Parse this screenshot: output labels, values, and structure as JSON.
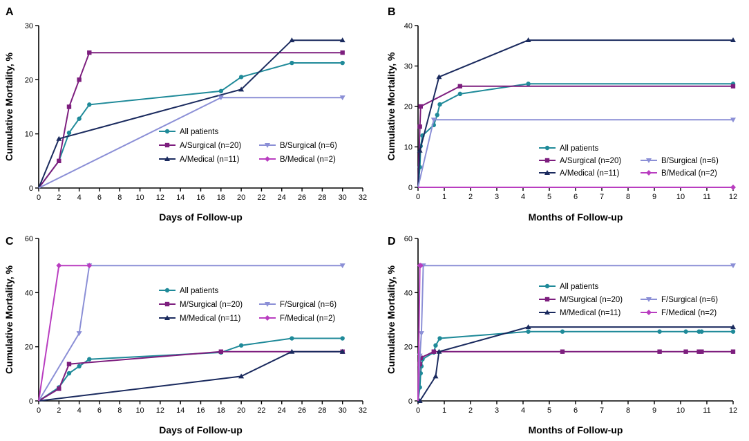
{
  "colors": {
    "teal": "#1f8a99",
    "purple": "#7d1e7e",
    "navy": "#1a2a5e",
    "lavender": "#8b8fd6",
    "magenta": "#b93dc0"
  },
  "chart_data": [
    {
      "panel": "A",
      "type": "line",
      "xlabel": "Days of Follow-up",
      "ylabel": "Cumulative Mortality, %",
      "xlim": [
        0,
        32
      ],
      "ylim": [
        0,
        30
      ],
      "xticks": [
        0,
        2,
        4,
        6,
        8,
        10,
        12,
        14,
        16,
        18,
        20,
        22,
        24,
        26,
        28,
        30,
        32
      ],
      "yticks": [
        0,
        10,
        20,
        30
      ],
      "legend_position": "lower-right",
      "series": [
        {
          "name": "All patients",
          "color": "teal",
          "marker": "circle",
          "x": [
            0,
            2,
            3,
            4,
            5,
            18,
            20,
            25,
            30
          ],
          "y": [
            0,
            5,
            10.2,
            12.8,
            15.4,
            17.9,
            20.5,
            23.1,
            23.1
          ]
        },
        {
          "name": "A/Surgical (n=20)",
          "color": "purple",
          "marker": "square",
          "x": [
            0,
            2,
            3,
            4,
            5,
            30
          ],
          "y": [
            0,
            5,
            15,
            20,
            25,
            25
          ]
        },
        {
          "name": "A/Medical (n=11)",
          "color": "navy",
          "marker": "triangle",
          "x": [
            0,
            2,
            20,
            25,
            30
          ],
          "y": [
            0,
            9.1,
            18.2,
            27.3,
            27.3
          ]
        },
        {
          "name": "B/Surgical (n=6)",
          "color": "lavender",
          "marker": "triangle-down",
          "x": [
            0,
            18,
            30
          ],
          "y": [
            0,
            16.7,
            16.7
          ]
        },
        {
          "name": "B/Medical (n=2)",
          "color": "magenta",
          "marker": "diamond",
          "x": [],
          "y": []
        }
      ]
    },
    {
      "panel": "B",
      "type": "line",
      "xlabel": "Months of Follow-up",
      "ylabel": "Cumulative Mortality, %",
      "xlim": [
        0,
        12
      ],
      "ylim": [
        0,
        40
      ],
      "xticks": [
        0,
        1,
        2,
        3,
        4,
        5,
        6,
        7,
        8,
        9,
        10,
        11,
        12
      ],
      "yticks": [
        0,
        10,
        20,
        30,
        40
      ],
      "legend_position": "lower-right",
      "series": [
        {
          "name": "All patients",
          "color": "teal",
          "marker": "circle",
          "x": [
            0,
            0.07,
            0.1,
            0.17,
            0.6,
            0.73,
            0.83,
            1.6,
            4.2,
            12
          ],
          "y": [
            0,
            5,
            10.2,
            12.8,
            15.4,
            17.9,
            20.5,
            23.1,
            25.6,
            25.6
          ]
        },
        {
          "name": "A/Surgical (n=20)",
          "color": "purple",
          "marker": "square",
          "x": [
            0,
            0.07,
            0.1,
            1.6,
            12
          ],
          "y": [
            0,
            15,
            20,
            25,
            25
          ]
        },
        {
          "name": "A/Medical (n=11)",
          "color": "navy",
          "marker": "triangle",
          "x": [
            0,
            0.07,
            0.8,
            4.2,
            12
          ],
          "y": [
            0,
            9.1,
            27.3,
            36.4,
            36.4
          ]
        },
        {
          "name": "B/Surgical (n=6)",
          "color": "lavender",
          "marker": "triangle-down",
          "x": [
            0,
            0.6,
            12
          ],
          "y": [
            0,
            16.7,
            16.7
          ]
        },
        {
          "name": "B/Medical (n=2)",
          "color": "magenta",
          "marker": "diamond",
          "x": [
            0,
            12
          ],
          "y": [
            0,
            0
          ]
        }
      ]
    },
    {
      "panel": "C",
      "type": "line",
      "xlabel": "Days of Follow-up",
      "ylabel": "Cumulative Mortality, %",
      "xlim": [
        0,
        32
      ],
      "ylim": [
        0,
        60
      ],
      "xticks": [
        0,
        2,
        4,
        6,
        8,
        10,
        12,
        14,
        16,
        18,
        20,
        22,
        24,
        26,
        28,
        30,
        32
      ],
      "yticks": [
        0,
        20,
        40,
        60
      ],
      "legend_position": "center-right",
      "series": [
        {
          "name": "All patients",
          "color": "teal",
          "marker": "circle",
          "x": [
            0,
            2,
            3,
            4,
            5,
            18,
            20,
            25,
            30
          ],
          "y": [
            0,
            5,
            10.2,
            12.8,
            15.4,
            17.9,
            20.5,
            23.1,
            23.1
          ]
        },
        {
          "name": "M/Surgical (n=20)",
          "color": "purple",
          "marker": "square",
          "x": [
            0,
            2,
            3,
            18,
            30
          ],
          "y": [
            0,
            4.5,
            13.6,
            18.2,
            18.2
          ]
        },
        {
          "name": "M/Medical (n=11)",
          "color": "navy",
          "marker": "triangle",
          "x": [
            0,
            20,
            25,
            30
          ],
          "y": [
            0,
            9.1,
            18.2,
            18.2
          ]
        },
        {
          "name": "F/Surgical (n=6)",
          "color": "lavender",
          "marker": "triangle-down",
          "x": [
            0,
            4,
            5,
            30
          ],
          "y": [
            0,
            25,
            50,
            50
          ]
        },
        {
          "name": "F/Medical (n=2)",
          "color": "magenta",
          "marker": "diamond",
          "x": [
            0,
            2,
            5
          ],
          "y": [
            0,
            50,
            50
          ]
        }
      ]
    },
    {
      "panel": "D",
      "type": "line",
      "xlabel": "Months of Follow-up",
      "ylabel": "Cumulative Mortality, %",
      "xlim": [
        0,
        12
      ],
      "ylim": [
        0,
        60
      ],
      "xticks": [
        0,
        1,
        2,
        3,
        4,
        5,
        6,
        7,
        8,
        9,
        10,
        11,
        12
      ],
      "yticks": [
        0,
        20,
        40,
        60
      ],
      "legend_position": "center-right",
      "series": [
        {
          "name": "All patients",
          "color": "teal",
          "marker": "circle",
          "x": [
            0,
            0.07,
            0.1,
            0.13,
            0.17,
            0.6,
            0.67,
            0.83,
            4.2,
            5.5,
            9.2,
            10.2,
            10.7,
            10.8,
            12
          ],
          "y": [
            0,
            5,
            10.2,
            12.8,
            15.4,
            17.9,
            20.5,
            23.1,
            25.6,
            25.6,
            25.6,
            25.6,
            25.6,
            25.6,
            25.6
          ]
        },
        {
          "name": "M/Surgical (n=20)",
          "color": "purple",
          "marker": "square",
          "x": [
            0,
            0.07,
            0.1,
            0.6,
            5.5,
            9.2,
            10.2,
            10.7,
            10.8,
            12
          ],
          "y": [
            0,
            13.6,
            15.9,
            18.2,
            18.2,
            18.2,
            18.2,
            18.2,
            18.2,
            18.2
          ]
        },
        {
          "name": "M/Medical (n=11)",
          "color": "navy",
          "marker": "triangle",
          "x": [
            0,
            0.07,
            0.67,
            0.8,
            4.2,
            12
          ],
          "y": [
            0,
            0,
            9.1,
            18.2,
            27.3,
            27.3
          ]
        },
        {
          "name": "F/Surgical (n=6)",
          "color": "lavender",
          "marker": "triangle-down",
          "x": [
            0,
            0.07,
            0.13,
            0.2,
            12
          ],
          "y": [
            0,
            16.7,
            25,
            50,
            50
          ]
        },
        {
          "name": "F/Medical (n=2)",
          "color": "magenta",
          "marker": "diamond",
          "x": [
            0,
            0.07,
            0.1
          ],
          "y": [
            0,
            50,
            50
          ]
        }
      ]
    }
  ]
}
